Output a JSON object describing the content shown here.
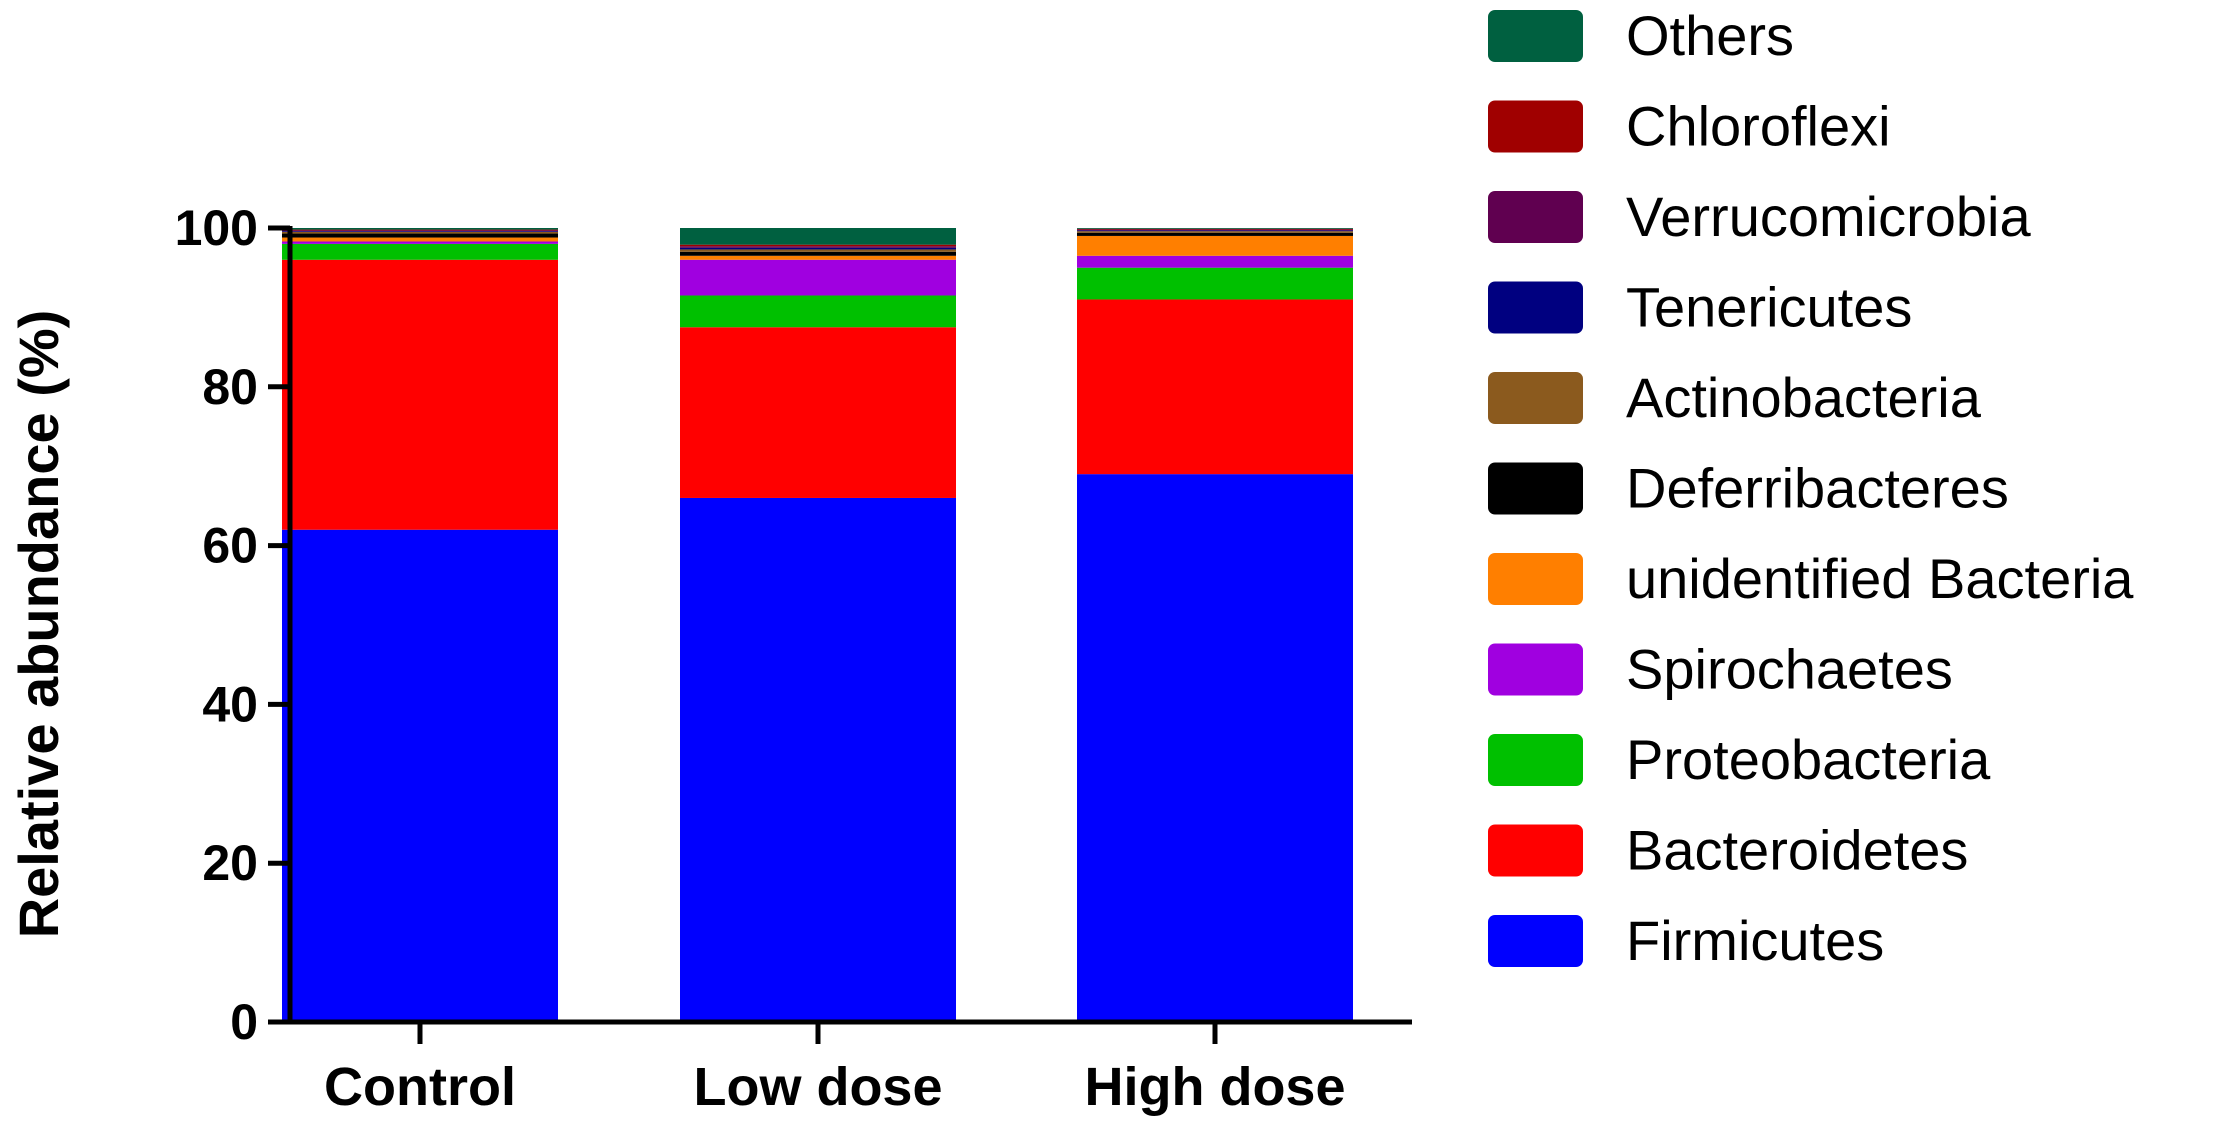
{
  "chart_data": {
    "type": "bar",
    "stacked": true,
    "title": "",
    "xlabel": "",
    "ylabel": "Relative abundance (%)",
    "ylim": [
      0,
      100
    ],
    "yticks": [
      0,
      20,
      40,
      60,
      80,
      100
    ],
    "categories": [
      "Control",
      "Low dose",
      "High dose"
    ],
    "legend_position": "right",
    "series": [
      {
        "name": "Firmicutes",
        "color": "#0000FF",
        "values": [
          62.0,
          66.0,
          69.0
        ]
      },
      {
        "name": "Bacteroidetes",
        "color": "#FF0000",
        "values": [
          34.0,
          21.5,
          22.0
        ]
      },
      {
        "name": "Proteobacteria",
        "color": "#00C000",
        "values": [
          2.0,
          4.0,
          4.0
        ]
      },
      {
        "name": "Spirochaetes",
        "color": "#A000E0",
        "values": [
          0.3,
          4.5,
          1.5
        ]
      },
      {
        "name": "unidentified Bacteria",
        "color": "#FF7F00",
        "values": [
          0.5,
          0.5,
          2.5
        ]
      },
      {
        "name": "Deferribacteres",
        "color": "#000000",
        "values": [
          0.5,
          0.5,
          0.4
        ]
      },
      {
        "name": "Actinobacteria",
        "color": "#8B5A1E",
        "values": [
          0.2,
          0.3,
          0.2
        ]
      },
      {
        "name": "Tenericutes",
        "color": "#000080",
        "values": [
          0.1,
          0.2,
          0.1
        ]
      },
      {
        "name": "Verrucomicrobia",
        "color": "#600050",
        "values": [
          0.1,
          0.2,
          0.1
        ]
      },
      {
        "name": "Chloroflexi",
        "color": "#A00000",
        "values": [
          0.1,
          0.2,
          0.1
        ]
      },
      {
        "name": "Others",
        "color": "#006040",
        "values": [
          0.2,
          2.1,
          0.1
        ]
      }
    ]
  }
}
